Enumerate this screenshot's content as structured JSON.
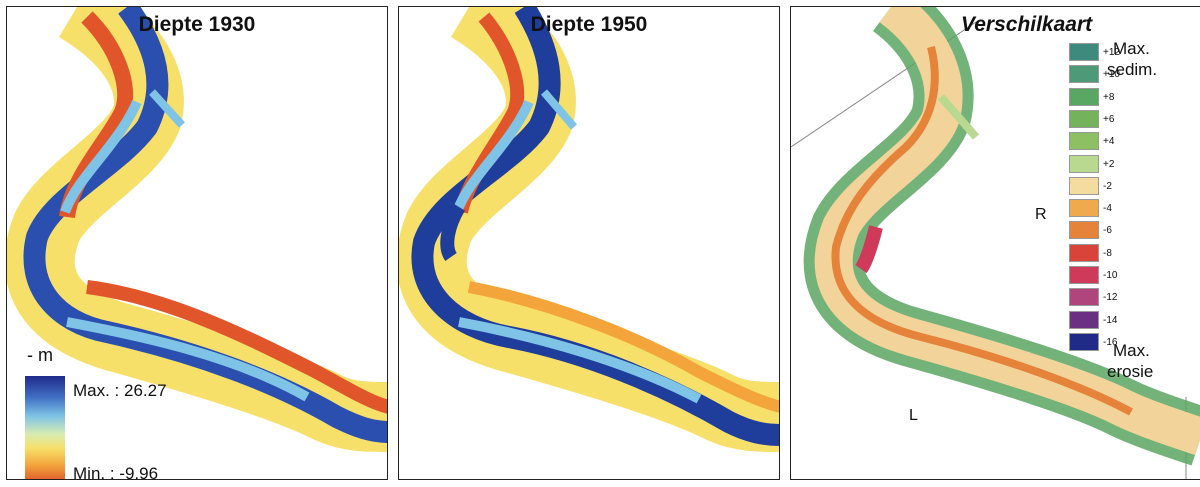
{
  "panels": [
    {
      "title": "Diepte 1930"
    },
    {
      "title": "Diepte 1950"
    },
    {
      "title": "Verschilkaart"
    }
  ],
  "depth_legend": {
    "unit": "- m",
    "max_label": "Max. : 26.27",
    "min_label": "Min. : -9.96"
  },
  "diff_legend": {
    "classes": [
      {
        "label": "+12",
        "color": "#3e8b7e"
      },
      {
        "label": "+10",
        "color": "#4e9a78"
      },
      {
        "label": "+8",
        "color": "#5aa663"
      },
      {
        "label": "+6",
        "color": "#74b25c"
      },
      {
        "label": "+4",
        "color": "#8cc063"
      },
      {
        "label": "+2",
        "color": "#b8d98f"
      },
      {
        "label": "-2",
        "color": "#f4dba0"
      },
      {
        "label": "-4",
        "color": "#eeaa4c"
      },
      {
        "label": "-6",
        "color": "#e6833a"
      },
      {
        "label": "-8",
        "color": "#d8433a"
      },
      {
        "label": "-10",
        "color": "#cf3a5a"
      },
      {
        "label": "-12",
        "color": "#b0457e"
      },
      {
        "label": "-14",
        "color": "#6a3183"
      },
      {
        "label": "-16",
        "color": "#1f2b86"
      }
    ],
    "max_sed_line1": "Max.",
    "max_sed_line2": "sedim.",
    "max_ero_line1": "Max.",
    "max_ero_line2": "erosie"
  },
  "bank_labels": {
    "right": "R",
    "left": "L"
  },
  "colors": {
    "deep": "#1f3d9a",
    "mid": "#7fc4e6",
    "shallow": "#f3e06a",
    "shore": "#e0562a",
    "diff_bank": "#5aa663",
    "diff_bed": "#f2d49a",
    "diff_ero": "#e6833a"
  }
}
